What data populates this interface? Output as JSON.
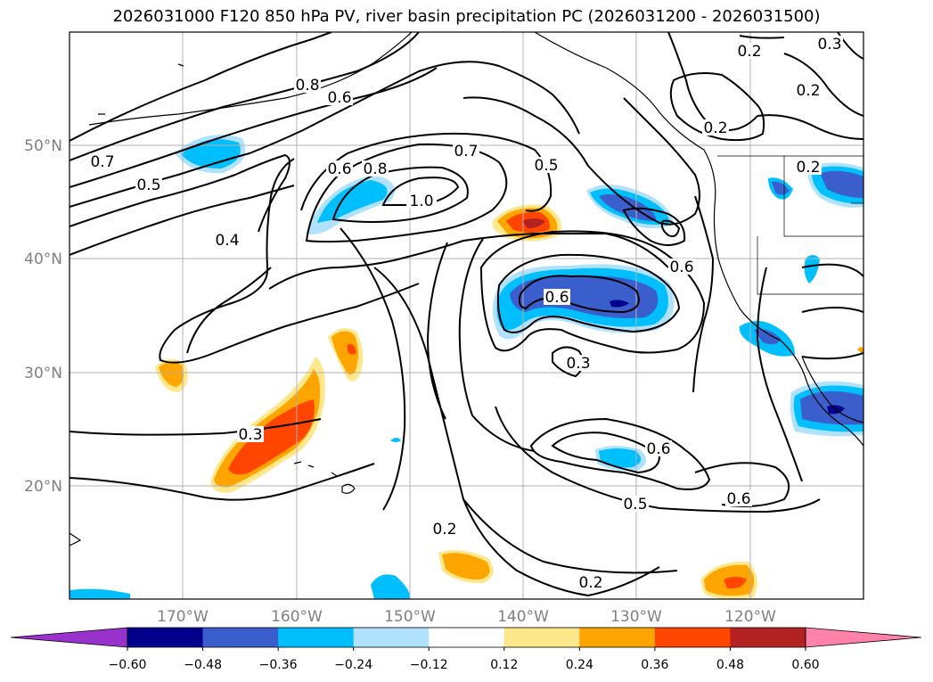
{
  "title": "2026031000 F120 850 hPa PV, river basin precipitation PC (2026031200 - 2026031500)",
  "map": {
    "lat_labels": [
      "50°N",
      "40°N",
      "30°N",
      "20°N"
    ],
    "lon_labels": [
      "170°W",
      "160°W",
      "150°W",
      "140°W",
      "130°W",
      "120°W"
    ],
    "contour_labels": [
      "0.8",
      "0.6",
      "0.7",
      "0.5",
      "0.6",
      "0.8",
      "1.0",
      "0.7",
      "0.5",
      "0.4",
      "0.6",
      "0.6",
      "0.3",
      "0.3",
      "0.6",
      "0.5",
      "0.6",
      "0.2",
      "0.2",
      "0.2",
      "0.2",
      "0.3",
      "0.2",
      "0.2"
    ]
  },
  "colorbar": {
    "ticks": [
      "−0.60",
      "−0.48",
      "−0.36",
      "−0.24",
      "−0.12",
      "0.12",
      "0.24",
      "0.36",
      "0.48",
      "0.60"
    ],
    "colors": [
      "#9932cc",
      "#00008b",
      "#3a5fcd",
      "#00bfff",
      "#b0e2ff",
      "#ffffff",
      "#ffe78b",
      "#ffa500",
      "#ff4500",
      "#b22222",
      "#ff82ab"
    ]
  }
}
